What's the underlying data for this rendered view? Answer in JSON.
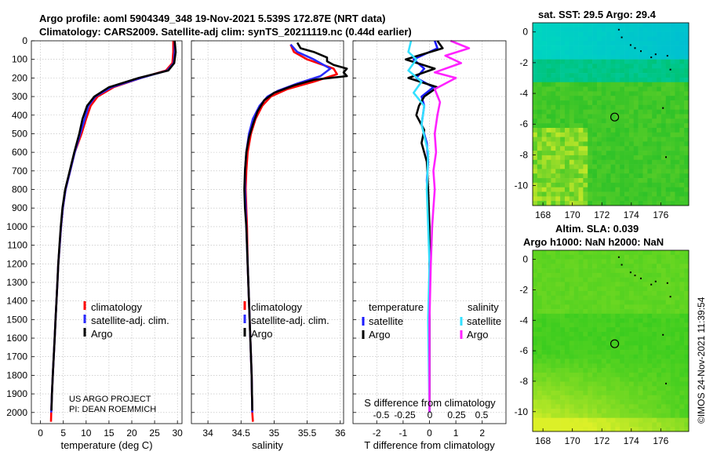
{
  "header": {
    "line1": "Argo profile: aoml 5904349_348 19-Nov-2021 5.539S 172.87E (NRT data)",
    "line2": "Climatology: CARS2009. Satellite-adj clim: synTS_20211119.nc (0.44d earlier)"
  },
  "colors": {
    "climatology": "#ff0000",
    "satellite_adj": "#2a2aff",
    "argo": "#000000",
    "sat_temperature": "#1a1aff",
    "sat_salinity": "#33e0ff",
    "argo_salinity": "#ff22ff"
  },
  "depth_ticks": [
    "0",
    "100",
    "200",
    "300",
    "400",
    "500",
    "600",
    "700",
    "800",
    "900",
    "1000",
    "1100",
    "1200",
    "1300",
    "1400",
    "1500",
    "1600",
    "1700",
    "1800",
    "1900",
    "2000"
  ],
  "chart_data": [
    {
      "type": "line",
      "name": "temperature",
      "xlabel": "temperature (deg C)",
      "ylabel": "",
      "xlim": [
        -2,
        31
      ],
      "ylim": [
        2060,
        0
      ],
      "xticks": [
        "0",
        "5",
        "10",
        "15",
        "20",
        "25",
        "30"
      ],
      "legend": [
        "climatology",
        "satellite-adj. clim.",
        "Argo"
      ],
      "legend_placement": "lower-right",
      "annotations": [
        "US ARGO PROJECT",
        "PI: DEAN ROEMMICH"
      ],
      "series": [
        {
          "name": "climatology",
          "color": "#ff0000",
          "points": [
            [
              29.1,
              0
            ],
            [
              29.1,
              60
            ],
            [
              28.9,
              120
            ],
            [
              27.5,
              160
            ],
            [
              22,
              200
            ],
            [
              16,
              250
            ],
            [
              12.5,
              300
            ],
            [
              11,
              350
            ],
            [
              10,
              420
            ],
            [
              9,
              500
            ],
            [
              7.5,
              600
            ],
            [
              6.5,
              700
            ],
            [
              5.5,
              800
            ],
            [
              4.9,
              900
            ],
            [
              4.5,
              1000
            ],
            [
              4.2,
              1100
            ],
            [
              3.9,
              1200
            ],
            [
              3.7,
              1300
            ],
            [
              3.5,
              1400
            ],
            [
              3.3,
              1500
            ],
            [
              3.1,
              1600
            ],
            [
              2.9,
              1700
            ],
            [
              2.7,
              1800
            ],
            [
              2.5,
              1900
            ],
            [
              2.35,
              2000
            ],
            [
              2.3,
              2050
            ]
          ]
        },
        {
          "name": "satellite-adj. clim.",
          "color": "#2a2aff",
          "points": [
            [
              29.4,
              0
            ],
            [
              29.4,
              60
            ],
            [
              29.2,
              120
            ],
            [
              27.8,
              160
            ],
            [
              22,
              200
            ],
            [
              15.5,
              250
            ],
            [
              12,
              300
            ],
            [
              10.5,
              350
            ],
            [
              9.7,
              420
            ],
            [
              8.7,
              500
            ],
            [
              7.5,
              600
            ],
            [
              6.5,
              700
            ],
            [
              5.5,
              800
            ],
            [
              4.9,
              900
            ],
            [
              4.5,
              1000
            ],
            [
              4.2,
              1100
            ],
            [
              3.9,
              1200
            ],
            [
              3.7,
              1300
            ],
            [
              3.5,
              1400
            ],
            [
              3.3,
              1500
            ],
            [
              3.1,
              1600
            ],
            [
              2.9,
              1700
            ],
            [
              2.7,
              1800
            ],
            [
              2.5,
              1900
            ],
            [
              2.35,
              2000
            ]
          ]
        },
        {
          "name": "Argo",
          "color": "#000000",
          "points": [
            [
              29.4,
              0
            ],
            [
              29.6,
              60
            ],
            [
              29.3,
              120
            ],
            [
              28,
              160
            ],
            [
              21.5,
              200
            ],
            [
              15,
              250
            ],
            [
              11.8,
              300
            ],
            [
              10.2,
              350
            ],
            [
              9.2,
              420
            ],
            [
              8.5,
              500
            ],
            [
              7.4,
              600
            ],
            [
              6.4,
              700
            ],
            [
              5.4,
              800
            ],
            [
              4.8,
              900
            ],
            [
              4.45,
              1000
            ],
            [
              4.15,
              1100
            ],
            [
              3.9,
              1200
            ],
            [
              3.7,
              1300
            ],
            [
              3.5,
              1400
            ],
            [
              3.3,
              1500
            ],
            [
              3.1,
              1600
            ],
            [
              2.9,
              1700
            ],
            [
              2.7,
              1800
            ],
            [
              2.5,
              1900
            ],
            [
              2.4,
              1990
            ]
          ]
        }
      ]
    },
    {
      "type": "line",
      "name": "salinity",
      "xlabel": "salinity",
      "ylabel": "",
      "xlim": [
        33.75,
        36.05
      ],
      "ylim": [
        2060,
        0
      ],
      "xticks": [
        "34",
        "34.5",
        "35",
        "35.5",
        "36"
      ],
      "legend": [
        "climatology",
        "satellite-adj. clim.",
        "Argo"
      ],
      "legend_placement": "lower-right",
      "series": [
        {
          "name": "climatology",
          "color": "#ff0000",
          "points": [
            [
              35.25,
              20
            ],
            [
              35.3,
              60
            ],
            [
              35.5,
              100
            ],
            [
              35.9,
              150
            ],
            [
              35.95,
              180
            ],
            [
              35.6,
              220
            ],
            [
              35.2,
              260
            ],
            [
              34.95,
              300
            ],
            [
              34.82,
              350
            ],
            [
              34.72,
              420
            ],
            [
              34.65,
              500
            ],
            [
              34.6,
              600
            ],
            [
              34.58,
              700
            ],
            [
              34.57,
              800
            ],
            [
              34.58,
              900
            ],
            [
              34.59,
              1000
            ],
            [
              34.6,
              1200
            ],
            [
              34.62,
              1400
            ],
            [
              34.64,
              1600
            ],
            [
              34.66,
              1800
            ],
            [
              34.67,
              2000
            ],
            [
              34.68,
              2050
            ]
          ]
        },
        {
          "name": "satellite-adj. clim.",
          "color": "#2a2aff",
          "points": [
            [
              35.25,
              20
            ],
            [
              35.35,
              60
            ],
            [
              35.6,
              100
            ],
            [
              35.85,
              150
            ],
            [
              35.7,
              190
            ],
            [
              35.35,
              230
            ],
            [
              35.05,
              270
            ],
            [
              34.9,
              300
            ],
            [
              34.78,
              350
            ],
            [
              34.68,
              420
            ],
            [
              34.62,
              500
            ],
            [
              34.58,
              600
            ],
            [
              34.56,
              700
            ],
            [
              34.56,
              800
            ],
            [
              34.57,
              900
            ],
            [
              34.58,
              1000
            ],
            [
              34.6,
              1200
            ],
            [
              34.62,
              1400
            ],
            [
              34.64,
              1600
            ],
            [
              34.66,
              1800
            ],
            [
              34.67,
              2000
            ]
          ]
        },
        {
          "name": "Argo",
          "color": "#000000",
          "points": [
            [
              35.35,
              10
            ],
            [
              35.4,
              40
            ],
            [
              35.6,
              60
            ],
            [
              35.8,
              90
            ],
            [
              35.8,
              110
            ],
            [
              35.9,
              130
            ],
            [
              36.1,
              150
            ],
            [
              36.05,
              170
            ],
            [
              36.1,
              190
            ],
            [
              35.6,
              210
            ],
            [
              35.3,
              240
            ],
            [
              35.0,
              280
            ],
            [
              34.85,
              320
            ],
            [
              34.75,
              380
            ],
            [
              34.68,
              450
            ],
            [
              34.62,
              520
            ],
            [
              34.58,
              600
            ],
            [
              34.56,
              700
            ],
            [
              34.55,
              800
            ],
            [
              34.56,
              900
            ],
            [
              34.58,
              1000
            ],
            [
              34.6,
              1200
            ],
            [
              34.62,
              1400
            ],
            [
              34.64,
              1600
            ],
            [
              34.66,
              1800
            ],
            [
              34.67,
              1990
            ]
          ]
        }
      ]
    },
    {
      "type": "line",
      "name": "difference-from-climatology",
      "xlabel": "T difference from climatology",
      "ylabel": "",
      "xlim": [
        -2.9,
        2.9
      ],
      "ylim": [
        2060,
        0
      ],
      "xticks": [
        "-2",
        "-1",
        "0",
        "1",
        "2"
      ],
      "top_axis_label": "S difference from climatology",
      "top_ticks": [
        "-0.5",
        "-0.25",
        "0",
        "0.25",
        "0.5"
      ],
      "legend": {
        "temperature": [
          "satellite",
          "Argo"
        ],
        "salinity": [
          "satellite",
          "Argo"
        ]
      },
      "legend_headers": [
        "temperature",
        "salinity"
      ],
      "legend_placement": "lower",
      "series": [
        {
          "name": "temperature satellite",
          "color": "#1a1aff",
          "points": [
            [
              0.2,
              0
            ],
            [
              0.3,
              40
            ],
            [
              -0.6,
              100
            ],
            [
              -0.2,
              150
            ],
            [
              -0.5,
              200
            ],
            [
              0.15,
              250
            ],
            [
              -0.3,
              300
            ],
            [
              -0.2,
              350
            ],
            [
              -0.3,
              450
            ],
            [
              -0.1,
              550
            ],
            [
              -0.05,
              650
            ],
            [
              -0.1,
              750
            ],
            [
              -0.05,
              900
            ],
            [
              0,
              1100
            ],
            [
              0,
              1500
            ],
            [
              0,
              2000
            ]
          ]
        },
        {
          "name": "temperature Argo",
          "color": "#000000",
          "points": [
            [
              0.3,
              0
            ],
            [
              0.5,
              40
            ],
            [
              -0.9,
              100
            ],
            [
              0.2,
              150
            ],
            [
              -0.8,
              200
            ],
            [
              0.3,
              250
            ],
            [
              -0.2,
              300
            ],
            [
              -0.4,
              350
            ],
            [
              -0.5,
              400
            ],
            [
              -0.2,
              480
            ],
            [
              -0.3,
              550
            ],
            [
              -0.1,
              650
            ],
            [
              -0.05,
              800
            ],
            [
              0,
              1000
            ],
            [
              0,
              1500
            ],
            [
              0,
              1990
            ]
          ]
        },
        {
          "name": "salinity satellite",
          "color": "#33e0ff",
          "points": [
            [
              -0.7,
              0
            ],
            [
              -0.8,
              60
            ],
            [
              -0.5,
              100
            ],
            [
              -0.8,
              160
            ],
            [
              -0.3,
              220
            ],
            [
              -0.6,
              280
            ],
            [
              -0.2,
              350
            ],
            [
              -0.3,
              450
            ],
            [
              -0.05,
              600
            ],
            [
              -0.1,
              800
            ],
            [
              -0.05,
              1000
            ],
            [
              0,
              1200
            ],
            [
              -0.05,
              1500
            ],
            [
              0,
              2000
            ]
          ]
        },
        {
          "name": "salinity Argo",
          "color": "#ff22ff",
          "points": [
            [
              0.8,
              0
            ],
            [
              1.5,
              40
            ],
            [
              0.6,
              80
            ],
            [
              1.2,
              120
            ],
            [
              0.2,
              170
            ],
            [
              1.0,
              200
            ],
            [
              0.2,
              260
            ],
            [
              0.4,
              330
            ],
            [
              0.3,
              400
            ],
            [
              0.2,
              500
            ],
            [
              0.25,
              600
            ],
            [
              0.15,
              700
            ],
            [
              0.2,
              800
            ],
            [
              0.15,
              900
            ],
            [
              0.1,
              1000
            ],
            [
              0.05,
              1200
            ],
            [
              0,
              1500
            ],
            [
              0,
              2000
            ]
          ]
        }
      ]
    }
  ],
  "maps": [
    {
      "title": "sat. SST: 29.5 Argo: 29.4",
      "xticks": [
        "168",
        "170",
        "172",
        "174",
        "176"
      ],
      "yticks": [
        "0",
        "-2",
        "-4",
        "-6",
        "-8",
        "-10"
      ],
      "palette": "sst",
      "marker": {
        "lon": 172.87,
        "lat": -5.539
      }
    },
    {
      "title_line1": "Altim. SLA: 0.039",
      "title_line2": "Argo h1000: NaN h2000: NaN",
      "xticks": [
        "168",
        "170",
        "172",
        "174",
        "176"
      ],
      "yticks": [
        "0",
        "-2",
        "-4",
        "-6",
        "-8",
        "-10"
      ],
      "palette": "sla",
      "marker": {
        "lon": 172.87,
        "lat": -5.539
      }
    }
  ],
  "footer": {
    "credit": "US ARGO PROJECT",
    "pi": "PI: DEAN ROEMMICH",
    "stamp": "©IMOS 24-Nov-2021 11:39:54"
  }
}
